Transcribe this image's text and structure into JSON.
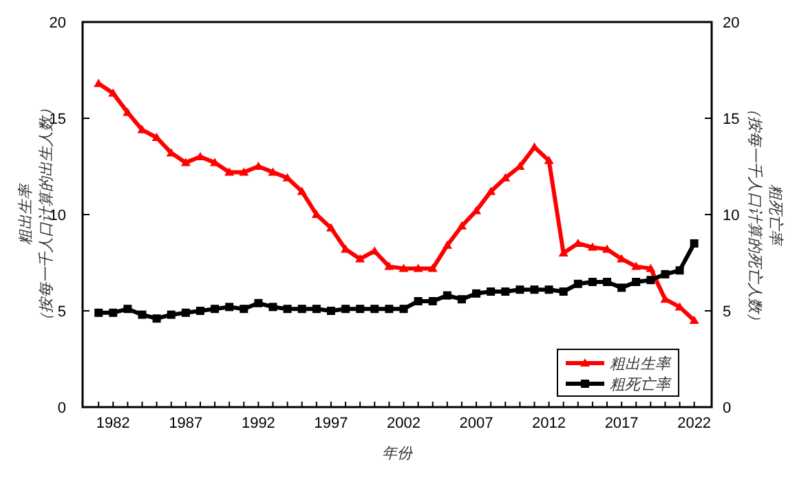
{
  "chart_data": {
    "type": "line",
    "xlabel": "年份",
    "ylabel": "粗出生率（按每一千人口计算的出生人数）",
    "y2label": "粗死亡率（按每一千人口计算的死亡人数）",
    "x": [
      1981,
      1982,
      1983,
      1984,
      1985,
      1986,
      1987,
      1988,
      1989,
      1990,
      1991,
      1992,
      1993,
      1994,
      1995,
      1996,
      1997,
      1998,
      1999,
      2000,
      2001,
      2002,
      2003,
      2004,
      2005,
      2006,
      2007,
      2008,
      2009,
      2010,
      2011,
      2012,
      2013,
      2014,
      2015,
      2016,
      2017,
      2018,
      2019,
      2020,
      2021,
      2022
    ],
    "series": [
      {
        "name": "粗出生率",
        "color": "#ff0000",
        "marker": "triangle",
        "values": [
          16.8,
          16.3,
          15.3,
          14.4,
          14.0,
          13.2,
          12.7,
          13.0,
          12.7,
          12.2,
          12.2,
          12.5,
          12.2,
          11.9,
          11.2,
          10.0,
          9.3,
          8.2,
          7.7,
          8.1,
          7.3,
          7.2,
          7.2,
          7.2,
          8.4,
          9.4,
          10.2,
          11.2,
          11.9,
          12.5,
          13.5,
          12.8,
          8.0,
          8.5,
          8.3,
          8.2,
          7.7,
          7.3,
          7.2,
          5.6,
          5.2,
          4.5
        ]
      },
      {
        "name": "粗死亡率",
        "color": "#000000",
        "marker": "square",
        "values": [
          4.9,
          4.9,
          5.1,
          4.8,
          4.6,
          4.8,
          4.9,
          5.0,
          5.1,
          5.2,
          5.1,
          5.4,
          5.2,
          5.1,
          5.1,
          5.1,
          5.0,
          5.1,
          5.1,
          5.1,
          5.1,
          5.1,
          5.5,
          5.5,
          5.8,
          5.6,
          5.9,
          6.0,
          6.0,
          6.1,
          6.1,
          6.1,
          6.0,
          6.4,
          6.5,
          6.5,
          6.2,
          6.5,
          6.6,
          6.9,
          7.1,
          8.5
        ]
      }
    ],
    "xlim": [
      1979.9,
      2023.2
    ],
    "xticks": [
      {
        "value": 1981,
        "label": null
      },
      1982,
      {
        "value": 1983,
        "label": null
      },
      {
        "value": 1984,
        "label": null
      },
      {
        "value": 1985,
        "label": null
      },
      {
        "value": 1986,
        "label": null
      },
      1987,
      {
        "value": 1988,
        "label": null
      },
      {
        "value": 1989,
        "label": null
      },
      {
        "value": 1990,
        "label": null
      },
      {
        "value": 1991,
        "label": null
      },
      1992,
      {
        "value": 1993,
        "label": null
      },
      {
        "value": 1994,
        "label": null
      },
      {
        "value": 1995,
        "label": null
      },
      {
        "value": 1996,
        "label": null
      },
      1997,
      {
        "value": 1998,
        "label": null
      },
      {
        "value": 1999,
        "label": null
      },
      {
        "value": 2000,
        "label": null
      },
      {
        "value": 2001,
        "label": null
      },
      2002,
      {
        "value": 2003,
        "label": null
      },
      {
        "value": 2004,
        "label": null
      },
      {
        "value": 2005,
        "label": null
      },
      {
        "value": 2006,
        "label": null
      },
      2007,
      {
        "value": 2008,
        "label": null
      },
      {
        "value": 2009,
        "label": null
      },
      {
        "value": 2010,
        "label": null
      },
      {
        "value": 2011,
        "label": null
      },
      2012,
      {
        "value": 2013,
        "label": null
      },
      {
        "value": 2014,
        "label": null
      },
      {
        "value": 2015,
        "label": null
      },
      {
        "value": 2016,
        "label": null
      },
      2017,
      {
        "value": 2018,
        "label": null
      },
      {
        "value": 2019,
        "label": null
      },
      {
        "value": 2020,
        "label": null
      },
      {
        "value": 2021,
        "label": null
      },
      2022
    ],
    "ylim": [
      0,
      20
    ],
    "yticks": [
      0,
      5,
      10,
      15,
      20
    ],
    "y2lim": [
      0,
      20
    ],
    "y2ticks": [
      0,
      5,
      10,
      15,
      20
    ],
    "grid": false,
    "legend": "bottom right",
    "line_style": "solid"
  }
}
